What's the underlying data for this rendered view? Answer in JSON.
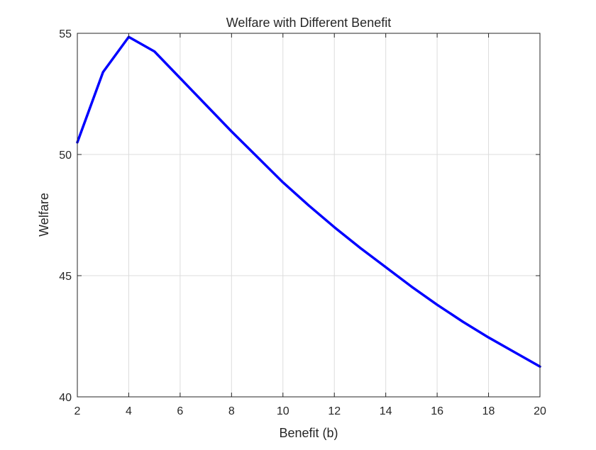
{
  "chart_data": {
    "type": "line",
    "title": "Welfare with Different Benefit",
    "xlabel": "Benefit (b)",
    "ylabel": "Welfare",
    "xlim": [
      2,
      20
    ],
    "ylim": [
      40,
      55
    ],
    "xticks": [
      2,
      4,
      6,
      8,
      10,
      12,
      14,
      16,
      18,
      20
    ],
    "yticks": [
      40,
      45,
      50,
      55
    ],
    "grid": true,
    "legend": "none",
    "series": [
      {
        "color": "#0000ff",
        "x": [
          2,
          3,
          4,
          5,
          6,
          7,
          8,
          9,
          10,
          11,
          12,
          13,
          14,
          15,
          16,
          17,
          18,
          19,
          20
        ],
        "y": [
          50.5,
          53.4,
          54.85,
          54.25,
          53.15,
          52.05,
          50.95,
          49.9,
          48.85,
          47.9,
          47.0,
          46.15,
          45.35,
          44.55,
          43.8,
          43.1,
          42.45,
          41.85,
          41.25
        ]
      }
    ]
  }
}
